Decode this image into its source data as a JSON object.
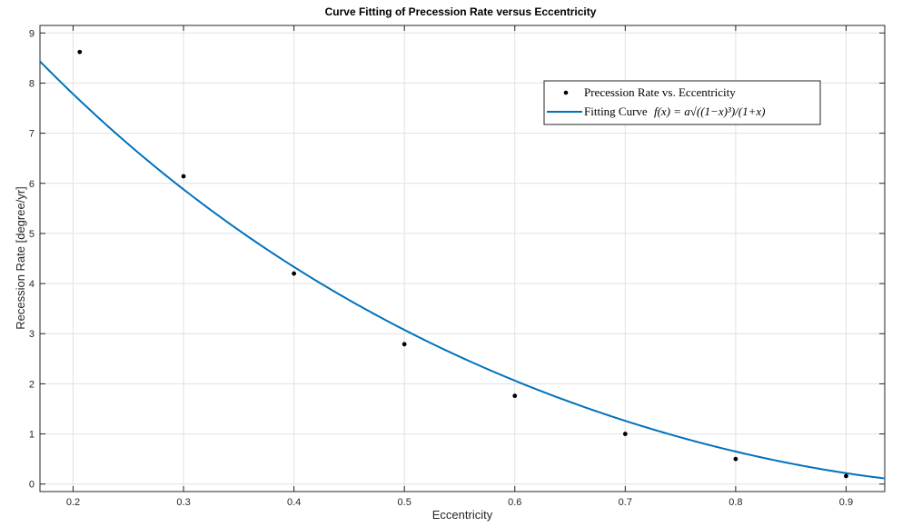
{
  "chart_data": {
    "type": "scatter",
    "title": "Curve Fitting of Precession Rate versus Eccentricity",
    "xlabel": "Eccentricity",
    "ylabel": "Recession Rate [degree/yr]",
    "xlim": [
      0.17,
      0.935
    ],
    "ylim": [
      -0.15,
      9.15
    ],
    "xticks": [
      0.2,
      0.3,
      0.4,
      0.5,
      0.6,
      0.7,
      0.8,
      0.9
    ],
    "xtick_labels": [
      "0.2",
      "0.3",
      "0.4",
      "0.5",
      "0.6",
      "0.7",
      "0.8",
      "0.9"
    ],
    "yticks": [
      0,
      1,
      2,
      3,
      4,
      5,
      6,
      7,
      8,
      9
    ],
    "ytick_labels": [
      "0",
      "1",
      "2",
      "3",
      "4",
      "5",
      "6",
      "7",
      "8",
      "9"
    ],
    "grid": true,
    "legend_position": "top-right",
    "series": [
      {
        "name": "Precession Rate vs. Eccentricity",
        "kind": "points",
        "color": "#000000",
        "x": [
          0.206,
          0.3,
          0.4,
          0.5,
          0.6,
          0.7,
          0.8,
          0.9
        ],
        "y": [
          8.62,
          6.14,
          4.2,
          2.79,
          1.76,
          1.0,
          0.5,
          0.16
        ]
      },
      {
        "name": "Fitting Curve",
        "formula": "f(x) = a√((1−x)³)/(1+x)",
        "kind": "curve",
        "color": "#0072BD",
        "a": 13.05,
        "x_range": [
          0.17,
          0.935
        ]
      }
    ]
  }
}
